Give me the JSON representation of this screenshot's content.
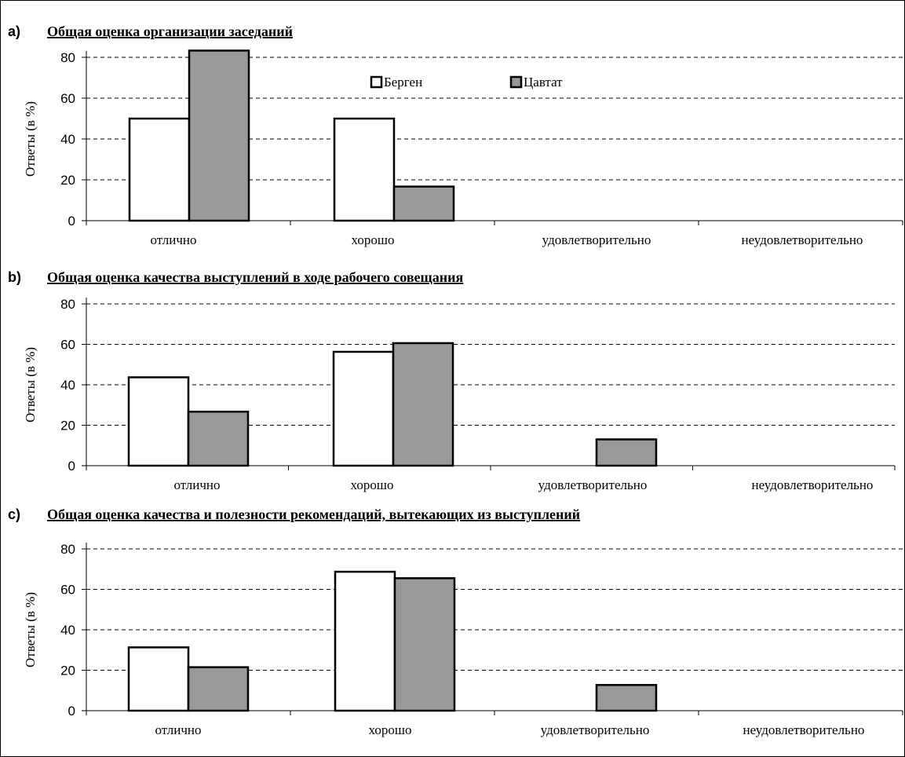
{
  "colors": {
    "bergen": "#ffffff",
    "cavtat": "#999999",
    "outline": "#000000",
    "grid": "#000000"
  },
  "legend": {
    "series_1": "Берген",
    "series_2": "Цавтат"
  },
  "chart_data": [
    {
      "type": "bar",
      "letter": "a)",
      "title": "Общая оценка организации заседаний",
      "ylabel": "Ответы (в %)",
      "categories": [
        "отлично",
        "хорошо",
        "удовлетворительно",
        "неудовлетворительно"
      ],
      "series": [
        {
          "name": "Берген",
          "values": [
            50,
            50,
            0,
            0
          ]
        },
        {
          "name": "Цавтат",
          "values": [
            83.3,
            16.7,
            0,
            0
          ]
        }
      ],
      "ylim": [
        0,
        80
      ],
      "yticks": [
        "0",
        "20",
        "40",
        "60",
        "80"
      ],
      "grid": true,
      "legend_position": "top-center"
    },
    {
      "type": "bar",
      "letter": "b)",
      "title": "Общая оценка качества выступлений в ходе рабочего совещания",
      "ylabel": "Ответы (в %)",
      "categories": [
        "отлично",
        "хорошо",
        "удовлетворительно",
        "неудовлетворительно"
      ],
      "series": [
        {
          "name": "Берген",
          "values": [
            43.7,
            56.3,
            0,
            0
          ]
        },
        {
          "name": "Цавтат",
          "values": [
            26.7,
            60.6,
            13,
            0
          ]
        }
      ],
      "ylim": [
        0,
        80
      ],
      "yticks": [
        "0",
        "20",
        "40",
        "60",
        "80"
      ],
      "grid": true
    },
    {
      "type": "bar",
      "letter": "c)",
      "title": "Общая оценка качества и полезности рекомендаций, вытекающих из выступлений",
      "ylabel": "Ответы (в %)",
      "categories": [
        "отлично",
        "хорошо",
        "удовлетворительно",
        "неудовлетворительно"
      ],
      "series": [
        {
          "name": "Берген",
          "values": [
            31.3,
            68.7,
            0,
            0
          ]
        },
        {
          "name": "Цавтат",
          "values": [
            21.5,
            65.5,
            12.7,
            0
          ]
        }
      ],
      "ylim": [
        0,
        80
      ],
      "yticks": [
        "0",
        "20",
        "40",
        "60",
        "80"
      ],
      "grid": true
    }
  ]
}
